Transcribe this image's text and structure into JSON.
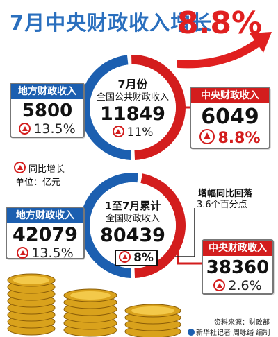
{
  "title": {
    "main": "7月中央财政收入增长",
    "growth": "8.8%"
  },
  "legend": {
    "growth_label": "同比增长",
    "unit": "单位：亿元"
  },
  "july": {
    "center_title": "7月份",
    "center_subtitle": "全国公共财政收入",
    "total": "11849",
    "total_growth": "11%",
    "local": {
      "label": "地方财政收入",
      "value": "5800",
      "growth": "13.5%"
    },
    "central": {
      "label": "中央财政收入",
      "value": "6049",
      "growth": "8.8%"
    }
  },
  "ytd": {
    "center_title": "1至7月累计",
    "center_subtitle": "全国财政收入",
    "total": "80439",
    "total_growth": "8%",
    "local": {
      "label": "地方财政收入",
      "value": "42079",
      "growth": "13.5%"
    },
    "central": {
      "label": "中央财政收入",
      "value": "38360",
      "growth": "2.6%"
    },
    "note_line1": "增幅同比回落",
    "note_line2": "3.6个百分点"
  },
  "footer": {
    "source": "资料来源：财政部",
    "credit": "新华社记者 周咏缗 编制"
  },
  "colors": {
    "local_blue": "#1c5fb0",
    "central_red": "#d31d1d",
    "title_blue": "#2a6fbe",
    "title_red": "#e02020"
  },
  "chart_data": [
    {
      "type": "pie",
      "title": "7月份 全国公共财政收入",
      "total": 11849,
      "categories": [
        "地方财政收入",
        "中央财政收入"
      ],
      "values": [
        5800,
        6049
      ],
      "growth_pct": [
        13.5,
        8.8
      ],
      "total_growth_pct": 11
    },
    {
      "type": "pie",
      "title": "1至7月累计 全国财政收入",
      "total": 80439,
      "categories": [
        "地方财政收入",
        "中央财政收入"
      ],
      "values": [
        42079,
        38360
      ],
      "growth_pct": [
        13.5,
        2.6
      ],
      "total_growth_pct": 8
    }
  ]
}
